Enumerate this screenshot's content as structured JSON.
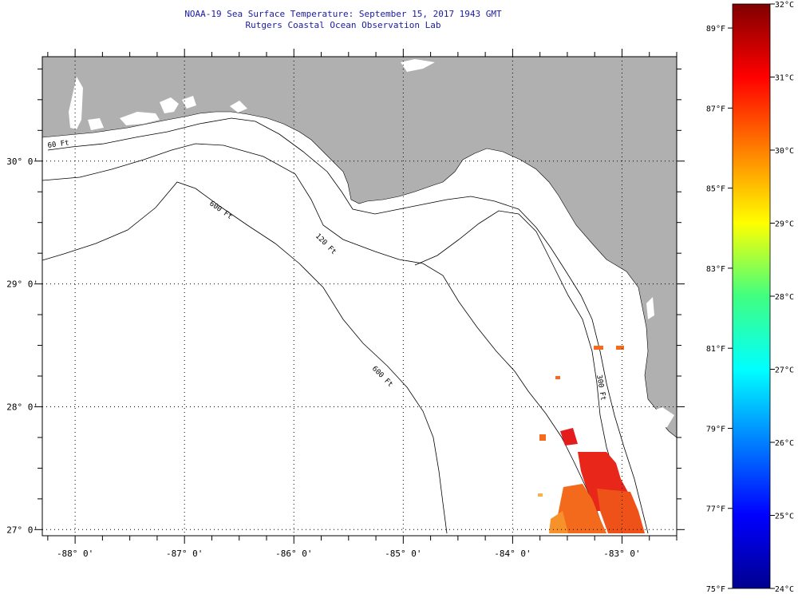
{
  "header": {
    "title": "NOAA-19 Sea Surface Temperature:  September 15, 2017 1943 GMT",
    "subtitle": "Rutgers Coastal Ocean Observation Lab"
  },
  "map": {
    "lat_labels": [
      "30° 0'",
      "29° 0'",
      "28° 0'",
      "27° 0'"
    ],
    "lon_labels": [
      "-88° 0'",
      "-87° 0'",
      "-86° 0'",
      "-85° 0'",
      "-84° 0'",
      "-83° 0'"
    ],
    "lon_range": [
      -88.3,
      -82.5
    ],
    "lat_range": [
      26.95,
      30.85
    ],
    "contour_labels": [
      "60 Ft",
      "120 Ft",
      "600 Ft",
      "300 Ft"
    ],
    "land_color": "#b0b0b0",
    "cloud_color": "#ffffff"
  },
  "colorbar": {
    "fahrenheit_labels": [
      "89°F",
      "87°F",
      "85°F",
      "83°F",
      "81°F",
      "79°F",
      "77°F",
      "75°F"
    ],
    "celsius_labels": [
      "32°C",
      "31°C",
      "30°C",
      "29°C",
      "28°C",
      "27°C",
      "26°C",
      "25°C",
      "24°C"
    ],
    "range_c": [
      24,
      32
    ],
    "range_f": [
      75,
      89.6
    ],
    "scheme": "jet"
  }
}
